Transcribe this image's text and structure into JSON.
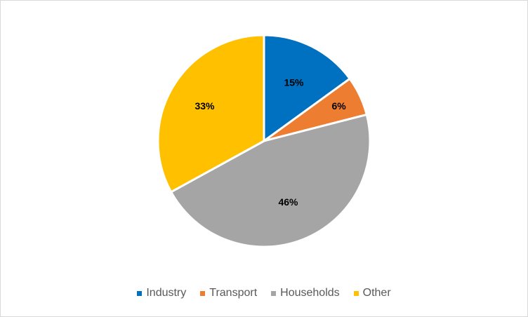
{
  "chart_data": {
    "type": "pie",
    "categories": [
      "Industry",
      "Transport",
      "Households",
      "Other"
    ],
    "values": [
      15,
      6,
      46,
      33
    ],
    "labels": [
      "15%",
      "6%",
      "46%",
      "33%"
    ],
    "colors": [
      "#0070C0",
      "#ED7D31",
      "#A5A5A5",
      "#FFC000"
    ],
    "legend_position": "bottom",
    "title": ""
  }
}
